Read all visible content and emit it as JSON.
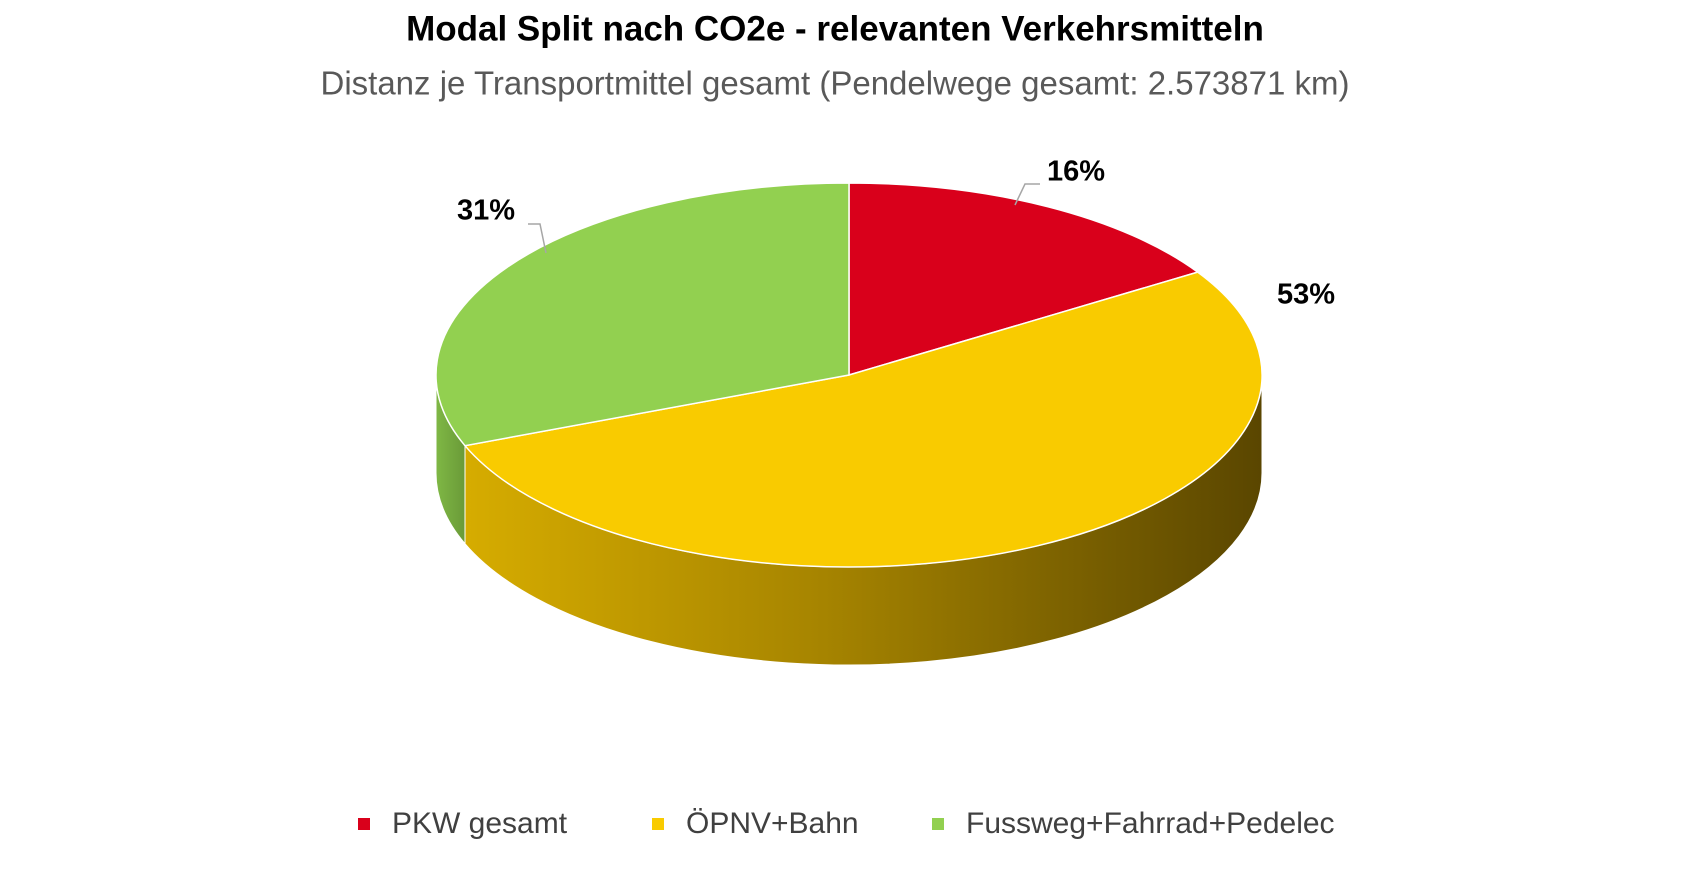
{
  "chart_data": {
    "type": "pie3d",
    "title": "Modal Split nach CO2e - relevanten Verkehrsmitteln",
    "subtitle": "Distanz je Transportmittel gesamt (Pendelwege gesamt: 2.573871 km)",
    "categories": [
      "PKW gesamt",
      "ÖPNV+Bahn",
      "Fussweg+Fahrrad+Pedelec"
    ],
    "values": [
      16,
      53,
      31
    ],
    "value_labels": [
      "16%",
      "53%",
      "31%"
    ],
    "colors": [
      "#d9001b",
      "#f9cb00",
      "#92d050"
    ],
    "legend": "bottom"
  }
}
